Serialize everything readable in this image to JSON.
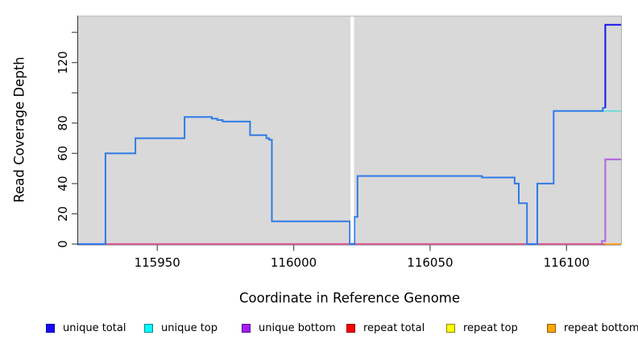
{
  "chart_data": {
    "type": "line",
    "subtype": "step-coverage",
    "title": "",
    "xlabel": "Coordinate in Reference Genome",
    "ylabel": "Read Coverage Depth",
    "xlim": [
      115921,
      116120
    ],
    "ylim": [
      0,
      151
    ],
    "x_ticks": [
      115950,
      116000,
      116050,
      116100
    ],
    "y_ticks": [
      0,
      20,
      40,
      60,
      80,
      100,
      120,
      140
    ],
    "y_tick_labels": [
      "0",
      "20",
      "40",
      "60",
      "80",
      "",
      "120",
      ""
    ],
    "grid": false,
    "panel_background": "#d9d9d9",
    "panel_border": "#b2b2b2",
    "axis_color": "#333333",
    "tick_color": "#4d4d4d",
    "gap_band": {
      "from": 116020.8,
      "to": 116022.1,
      "color": "#ffffff"
    },
    "series": [
      {
        "name": "repeat top",
        "segments": [
          {
            "color": "#f2f20a",
            "width": 1.4,
            "points": [
              [
                115921,
                0
              ],
              [
                116120,
                0
              ]
            ]
          }
        ]
      },
      {
        "name": "unique bottom",
        "segments": [
          {
            "color": "#b46be0",
            "width": 2.2,
            "points": [
              [
                115921,
                0
              ],
              [
                116113,
                0
              ],
              [
                116113,
                2
              ],
              [
                116114.2,
                2
              ],
              [
                116114.2,
                56
              ],
              [
                116120,
                56
              ]
            ]
          }
        ]
      },
      {
        "name": "repeat total",
        "segments": [
          {
            "color": "#e25570",
            "width": 1.5,
            "points": [
              [
                115921,
                0
              ],
              [
                116120,
                0
              ]
            ]
          }
        ]
      },
      {
        "name": "repeat bottom",
        "segments": [
          {
            "color": "#ffa520",
            "width": 1.8,
            "points": [
              [
                116114.2,
                0
              ],
              [
                116120,
                0
              ]
            ]
          }
        ]
      },
      {
        "name": "unique top",
        "segments": [
          {
            "color": "#63dbdb",
            "width": 1.6,
            "points": [
              [
                116112.8,
                88
              ],
              [
                116120,
                88
              ]
            ]
          }
        ]
      },
      {
        "name": "unique total",
        "segments": [
          {
            "color": "#2f7ae8",
            "width": 2,
            "points": [
              [
                115921,
                0
              ],
              [
                115931,
                0
              ],
              [
                115931,
                60
              ],
              [
                115942,
                60
              ],
              [
                115942,
                70
              ],
              [
                115960,
                70
              ],
              [
                115960,
                84
              ],
              [
                115970,
                84
              ],
              [
                115970,
                83
              ],
              [
                115972,
                83
              ],
              [
                115972,
                82
              ],
              [
                115974,
                82
              ],
              [
                115974,
                81
              ],
              [
                115984,
                81
              ],
              [
                115984,
                72
              ],
              [
                115990,
                72
              ],
              [
                115990,
                70
              ],
              [
                115991,
                70
              ],
              [
                115991,
                69
              ],
              [
                115992,
                69
              ],
              [
                115992,
                15
              ],
              [
                116020.6,
                15
              ],
              [
                116020.6,
                0
              ],
              [
                116022.3,
                0
              ],
              [
                116022.3,
                18
              ],
              [
                116023.4,
                18
              ],
              [
                116023.4,
                45
              ],
              [
                116069,
                45
              ],
              [
                116069,
                44
              ],
              [
                116081,
                44
              ],
              [
                116081,
                40
              ],
              [
                116082.5,
                40
              ],
              [
                116082.5,
                27
              ],
              [
                116085.5,
                27
              ],
              [
                116085.5,
                0
              ],
              [
                116089.3,
                0
              ],
              [
                116089.3,
                40
              ],
              [
                116095.3,
                40
              ],
              [
                116095.3,
                88
              ],
              [
                116113.3,
                88
              ],
              [
                116113.3,
                90
              ],
              [
                116114.2,
                90
              ]
            ]
          },
          {
            "color": "#1512ee",
            "width": 2,
            "points": [
              [
                116114.2,
                90
              ],
              [
                116114.2,
                145
              ],
              [
                116120,
                145
              ]
            ]
          }
        ]
      }
    ],
    "legend": [
      {
        "label": "unique total",
        "fill": "#1607f5",
        "border": "#0000a0"
      },
      {
        "label": "unique top",
        "fill": "#00ffff",
        "border": "#008b8b"
      },
      {
        "label": "unique bottom",
        "fill": "#a31ded",
        "border": "#5a0b8a"
      },
      {
        "label": "repeat total",
        "fill": "#ff0000",
        "border": "#8b0000"
      },
      {
        "label": "repeat top",
        "fill": "#ffff00",
        "border": "#8b8b00"
      },
      {
        "label": "repeat bottom",
        "fill": "#ffa500",
        "border": "#8b5a00"
      }
    ],
    "legend_position": "bottom"
  }
}
